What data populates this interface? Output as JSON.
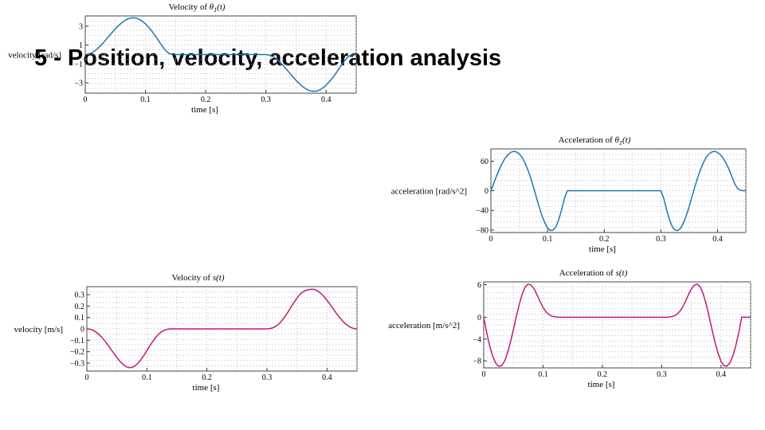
{
  "slide": {
    "title": "5 - Position, velocity, acceleration analysis"
  },
  "colors": {
    "blue": "#1f77b4",
    "magenta": "#c2187a",
    "grid": "#bdbdbd"
  },
  "chart_data": [
    {
      "type": "line",
      "title_prefix": "Velocity of ",
      "title_math": "θ",
      "title_sub": "1",
      "title_arg": "(t)",
      "xlabel": "time [s]",
      "ylabel": "velocity [rad/s]",
      "xlim": [
        0,
        0.45
      ],
      "ylim": [
        -4.1,
        4.1
      ],
      "xticks": [
        0,
        0.1,
        0.2,
        0.3,
        0.4
      ],
      "xtick_labels": [
        "0",
        "0.1",
        "0.2",
        "0.3",
        "0.4"
      ],
      "yticks": [
        3,
        1,
        -1,
        -3
      ],
      "ytick_labels": [
        "3",
        "1",
        "−1",
        "−3"
      ],
      "grid": true,
      "color": "#1f77b4",
      "series": [
        {
          "x": [
            0,
            0.005,
            0.01,
            0.015,
            0.02,
            0.025,
            0.03,
            0.035,
            0.04,
            0.045,
            0.05,
            0.055,
            0.06,
            0.065,
            0.07,
            0.075,
            0.08,
            0.085,
            0.09,
            0.095,
            0.1,
            0.105,
            0.11,
            0.115,
            0.12,
            0.125,
            0.13,
            0.135,
            0.14,
            0.145,
            0.15,
            0.2,
            0.25,
            0.3,
            0.305,
            0.31,
            0.315,
            0.32,
            0.325,
            0.33,
            0.335,
            0.34,
            0.345,
            0.35,
            0.355,
            0.36,
            0.365,
            0.37,
            0.375,
            0.38,
            0.385,
            0.39,
            0.395,
            0.4,
            0.405,
            0.41,
            0.415,
            0.42,
            0.425,
            0.43,
            0.435,
            0.44,
            0.445,
            0.45
          ],
          "y": [
            0,
            0.04,
            0.16,
            0.35,
            0.61,
            0.91,
            1.25,
            1.62,
            2.0,
            2.37,
            2.73,
            3.06,
            3.35,
            3.58,
            3.76,
            3.87,
            3.9,
            3.86,
            3.73,
            3.53,
            3.25,
            2.92,
            2.53,
            2.1,
            1.64,
            1.17,
            0.72,
            0.33,
            0.09,
            0.01,
            0,
            0,
            0,
            0,
            -0.04,
            -0.16,
            -0.35,
            -0.61,
            -0.91,
            -1.25,
            -1.62,
            -2.0,
            -2.37,
            -2.73,
            -3.06,
            -3.35,
            -3.58,
            -3.76,
            -3.87,
            -3.9,
            -3.86,
            -3.73,
            -3.53,
            -3.25,
            -2.92,
            -2.53,
            -2.1,
            -1.64,
            -1.17,
            -0.72,
            -0.33,
            -0.09,
            -0.01,
            0
          ]
        }
      ]
    },
    {
      "type": "line",
      "title_prefix": "Acceleration of ",
      "title_math": "θ",
      "title_sub": "1",
      "title_arg": "(t)",
      "xlabel": "time [s]",
      "ylabel": "acceleration [rad/s^2]",
      "xlim": [
        0,
        0.45
      ],
      "ylim": [
        -85,
        85
      ],
      "xticks": [
        0,
        0.1,
        0.2,
        0.3,
        0.4
      ],
      "xtick_labels": [
        "0",
        "0.1",
        "0.2",
        "0.3",
        "0.4"
      ],
      "yticks": [
        60,
        0,
        -40,
        -80
      ],
      "ytick_labels": [
        "60",
        "0",
        "−40",
        "−80"
      ],
      "grid": true,
      "color": "#1f77b4",
      "series": [
        {
          "x": [
            0,
            0.005,
            0.01,
            0.015,
            0.02,
            0.025,
            0.03,
            0.035,
            0.04,
            0.045,
            0.05,
            0.055,
            0.06,
            0.065,
            0.07,
            0.075,
            0.08,
            0.085,
            0.09,
            0.095,
            0.1,
            0.105,
            0.11,
            0.115,
            0.12,
            0.125,
            0.13,
            0.135,
            0.14,
            0.145,
            0.15,
            0.2,
            0.25,
            0.3,
            0.305,
            0.31,
            0.315,
            0.32,
            0.325,
            0.33,
            0.335,
            0.34,
            0.345,
            0.35,
            0.355,
            0.36,
            0.365,
            0.37,
            0.375,
            0.38,
            0.385,
            0.39,
            0.395,
            0.4,
            0.405,
            0.41,
            0.415,
            0.42,
            0.425,
            0.43,
            0.435,
            0.44,
            0.445,
            0.45
          ],
          "y": [
            0,
            15,
            30,
            44,
            56,
            66,
            73,
            78,
            80,
            79,
            75,
            68,
            57,
            43,
            27,
            8,
            -12,
            -32,
            -50,
            -65,
            -76,
            -81,
            -80,
            -73,
            -58,
            -38,
            -15,
            0,
            0,
            0,
            0,
            0,
            0,
            0,
            -15,
            -38,
            -58,
            -73,
            -80,
            -81,
            -76,
            -65,
            -50,
            -32,
            -12,
            8,
            27,
            43,
            57,
            68,
            75,
            79,
            80,
            78,
            73,
            66,
            56,
            44,
            30,
            15,
            5,
            1,
            0,
            0
          ]
        }
      ]
    },
    {
      "type": "line",
      "title_prefix": "Velocity of ",
      "title_math": "s",
      "title_sub": "",
      "title_arg": "(t)",
      "xlabel": "time [s]",
      "ylabel": "velocity [m/s]",
      "xlim": [
        0,
        0.45
      ],
      "ylim": [
        -0.37,
        0.37
      ],
      "xticks": [
        0,
        0.1,
        0.2,
        0.3,
        0.4
      ],
      "xtick_labels": [
        "0",
        "0.1",
        "0.2",
        "0.3",
        "0.4"
      ],
      "yticks": [
        0.3,
        0.2,
        0.1,
        0,
        -0.1,
        -0.2,
        -0.3
      ],
      "ytick_labels": [
        "0.3",
        "0.2",
        "0.1",
        "0",
        "−0.1",
        "−0.2",
        "−0.3"
      ],
      "grid": true,
      "color": "#c2187a",
      "series": [
        {
          "x": [
            0,
            0.005,
            0.01,
            0.015,
            0.02,
            0.025,
            0.03,
            0.035,
            0.04,
            0.045,
            0.05,
            0.055,
            0.06,
            0.065,
            0.07,
            0.075,
            0.08,
            0.085,
            0.09,
            0.095,
            0.1,
            0.105,
            0.11,
            0.115,
            0.12,
            0.125,
            0.13,
            0.135,
            0.14,
            0.145,
            0.15,
            0.2,
            0.25,
            0.3,
            0.305,
            0.31,
            0.315,
            0.32,
            0.325,
            0.33,
            0.335,
            0.34,
            0.345,
            0.35,
            0.355,
            0.36,
            0.365,
            0.37,
            0.375,
            0.38,
            0.385,
            0.39,
            0.395,
            0.4,
            0.405,
            0.41,
            0.415,
            0.42,
            0.425,
            0.43,
            0.435,
            0.44,
            0.445,
            0.45
          ],
          "y": [
            0,
            -0.003,
            -0.012,
            -0.027,
            -0.048,
            -0.075,
            -0.106,
            -0.141,
            -0.178,
            -0.215,
            -0.251,
            -0.284,
            -0.31,
            -0.33,
            -0.34,
            -0.338,
            -0.325,
            -0.302,
            -0.27,
            -0.232,
            -0.19,
            -0.148,
            -0.108,
            -0.073,
            -0.044,
            -0.023,
            -0.01,
            -0.003,
            0,
            0,
            0,
            0,
            0,
            0,
            0.003,
            0.01,
            0.023,
            0.044,
            0.073,
            0.108,
            0.148,
            0.19,
            0.232,
            0.27,
            0.302,
            0.325,
            0.338,
            0.345,
            0.348,
            0.345,
            0.33,
            0.31,
            0.284,
            0.251,
            0.215,
            0.178,
            0.141,
            0.106,
            0.075,
            0.048,
            0.027,
            0.012,
            0.003,
            0
          ]
        }
      ]
    },
    {
      "type": "line",
      "title_prefix": "Acceleration of ",
      "title_math": "s",
      "title_sub": "",
      "title_arg": "(t)",
      "xlabel": "time [s]",
      "ylabel": "acceleration [m/s^2]",
      "xlim": [
        0,
        0.45
      ],
      "ylim": [
        -9.3,
        6.5
      ],
      "xticks": [
        0,
        0.1,
        0.2,
        0.3,
        0.4
      ],
      "xtick_labels": [
        "0",
        "0.1",
        "0.2",
        "0.3",
        "0.4"
      ],
      "yticks": [
        6,
        0,
        -4,
        -8
      ],
      "ytick_labels": [
        "6",
        "0",
        "−4",
        "−8"
      ],
      "grid": true,
      "color": "#c2187a",
      "series": [
        {
          "x": [
            0,
            0.005,
            0.01,
            0.015,
            0.02,
            0.025,
            0.03,
            0.035,
            0.04,
            0.045,
            0.05,
            0.055,
            0.06,
            0.065,
            0.07,
            0.075,
            0.08,
            0.085,
            0.09,
            0.095,
            0.1,
            0.105,
            0.11,
            0.115,
            0.12,
            0.125,
            0.13,
            0.135,
            0.14,
            0.145,
            0.15,
            0.2,
            0.25,
            0.3,
            0.305,
            0.31,
            0.315,
            0.32,
            0.325,
            0.33,
            0.335,
            0.34,
            0.345,
            0.35,
            0.355,
            0.36,
            0.365,
            0.37,
            0.375,
            0.38,
            0.385,
            0.39,
            0.395,
            0.4,
            0.405,
            0.41,
            0.415,
            0.42,
            0.425,
            0.43,
            0.435,
            0.44,
            0.445,
            0.45
          ],
          "y": [
            0,
            -2.8,
            -5.2,
            -7.1,
            -8.4,
            -9.0,
            -8.9,
            -8.1,
            -6.6,
            -4.6,
            -2.3,
            0.1,
            2.4,
            4.3,
            5.6,
            6.1,
            5.9,
            5.2,
            4.1,
            2.9,
            1.8,
            1.0,
            0.5,
            0.2,
            0.1,
            0,
            0,
            0,
            0,
            0,
            0,
            0,
            0,
            0,
            0,
            0,
            0.1,
            0.2,
            0.5,
            1.0,
            1.8,
            2.9,
            4.1,
            5.2,
            5.9,
            6.1,
            5.6,
            4.3,
            2.4,
            0.1,
            -2.3,
            -4.6,
            -6.6,
            -8.1,
            -8.9,
            -9.0,
            -8.4,
            -7.1,
            -5.2,
            -2.8,
            0,
            0,
            0,
            0
          ]
        }
      ]
    }
  ]
}
